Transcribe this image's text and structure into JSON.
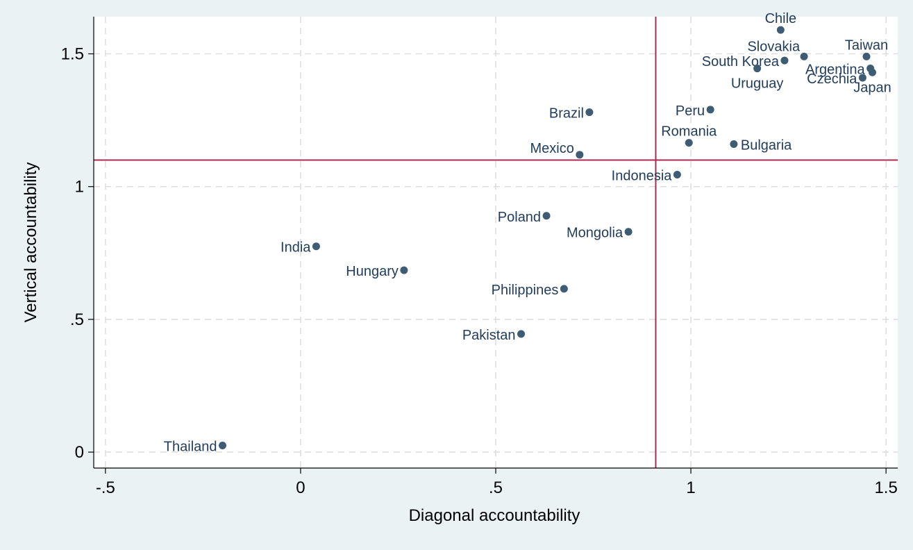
{
  "chart_data": {
    "type": "scatter",
    "title": "",
    "xlabel": "Diagonal accountability",
    "ylabel": "Vertical accountability",
    "xlim": [
      -0.53,
      1.53
    ],
    "ylim": [
      -0.06,
      1.64
    ],
    "xticks": [
      {
        "value": -0.5,
        "label": "-.5"
      },
      {
        "value": 0,
        "label": "0"
      },
      {
        "value": 0.5,
        "label": ".5"
      },
      {
        "value": 1,
        "label": "1"
      },
      {
        "value": 1.5,
        "label": "1.5"
      }
    ],
    "yticks": [
      {
        "value": 0,
        "label": "0"
      },
      {
        "value": 0.5,
        "label": ".5"
      },
      {
        "value": 1,
        "label": "1"
      },
      {
        "value": 1.5,
        "label": "1.5"
      }
    ],
    "grid": true,
    "reference_lines": {
      "x": 0.91,
      "y": 1.1,
      "color": "#b0284e"
    },
    "marker_color": "#3e5c73",
    "label_color": "#213d5d",
    "points": [
      {
        "label": "Chile",
        "x": 1.23,
        "y": 1.59,
        "label_pos": "top"
      },
      {
        "label": "Slovakia",
        "x": 1.29,
        "y": 1.49,
        "label_pos": "top-left"
      },
      {
        "label": "Taiwan",
        "x": 1.45,
        "y": 1.49,
        "label_pos": "top"
      },
      {
        "label": "South Korea",
        "x": 1.24,
        "y": 1.475,
        "label_pos": "left"
      },
      {
        "label": "Argentina",
        "x": 1.46,
        "y": 1.445,
        "label_pos": "left"
      },
      {
        "label": "Uruguay",
        "x": 1.17,
        "y": 1.445,
        "label_pos": "bottom"
      },
      {
        "label": "Czechia",
        "x": 1.44,
        "y": 1.41,
        "label_pos": "left"
      },
      {
        "label": "Japan",
        "x": 1.465,
        "y": 1.43,
        "label_pos": "bottom"
      },
      {
        "label": "Peru",
        "x": 1.05,
        "y": 1.29,
        "label_pos": "left"
      },
      {
        "label": "Brazil",
        "x": 0.74,
        "y": 1.28,
        "label_pos": "left"
      },
      {
        "label": "Romania",
        "x": 0.995,
        "y": 1.165,
        "label_pos": "top"
      },
      {
        "label": "Bulgaria",
        "x": 1.11,
        "y": 1.16,
        "label_pos": "right"
      },
      {
        "label": "Mexico",
        "x": 0.715,
        "y": 1.12,
        "label_pos": "left-up"
      },
      {
        "label": "Indonesia",
        "x": 0.965,
        "y": 1.045,
        "label_pos": "left"
      },
      {
        "label": "Poland",
        "x": 0.63,
        "y": 0.89,
        "label_pos": "left"
      },
      {
        "label": "Mongolia",
        "x": 0.84,
        "y": 0.83,
        "label_pos": "left"
      },
      {
        "label": "India",
        "x": 0.04,
        "y": 0.775,
        "label_pos": "left"
      },
      {
        "label": "Hungary",
        "x": 0.265,
        "y": 0.685,
        "label_pos": "left"
      },
      {
        "label": "Philippines",
        "x": 0.675,
        "y": 0.615,
        "label_pos": "left"
      },
      {
        "label": "Pakistan",
        "x": 0.565,
        "y": 0.445,
        "label_pos": "left"
      },
      {
        "label": "Thailand",
        "x": -0.2,
        "y": 0.025,
        "label_pos": "left"
      }
    ]
  }
}
